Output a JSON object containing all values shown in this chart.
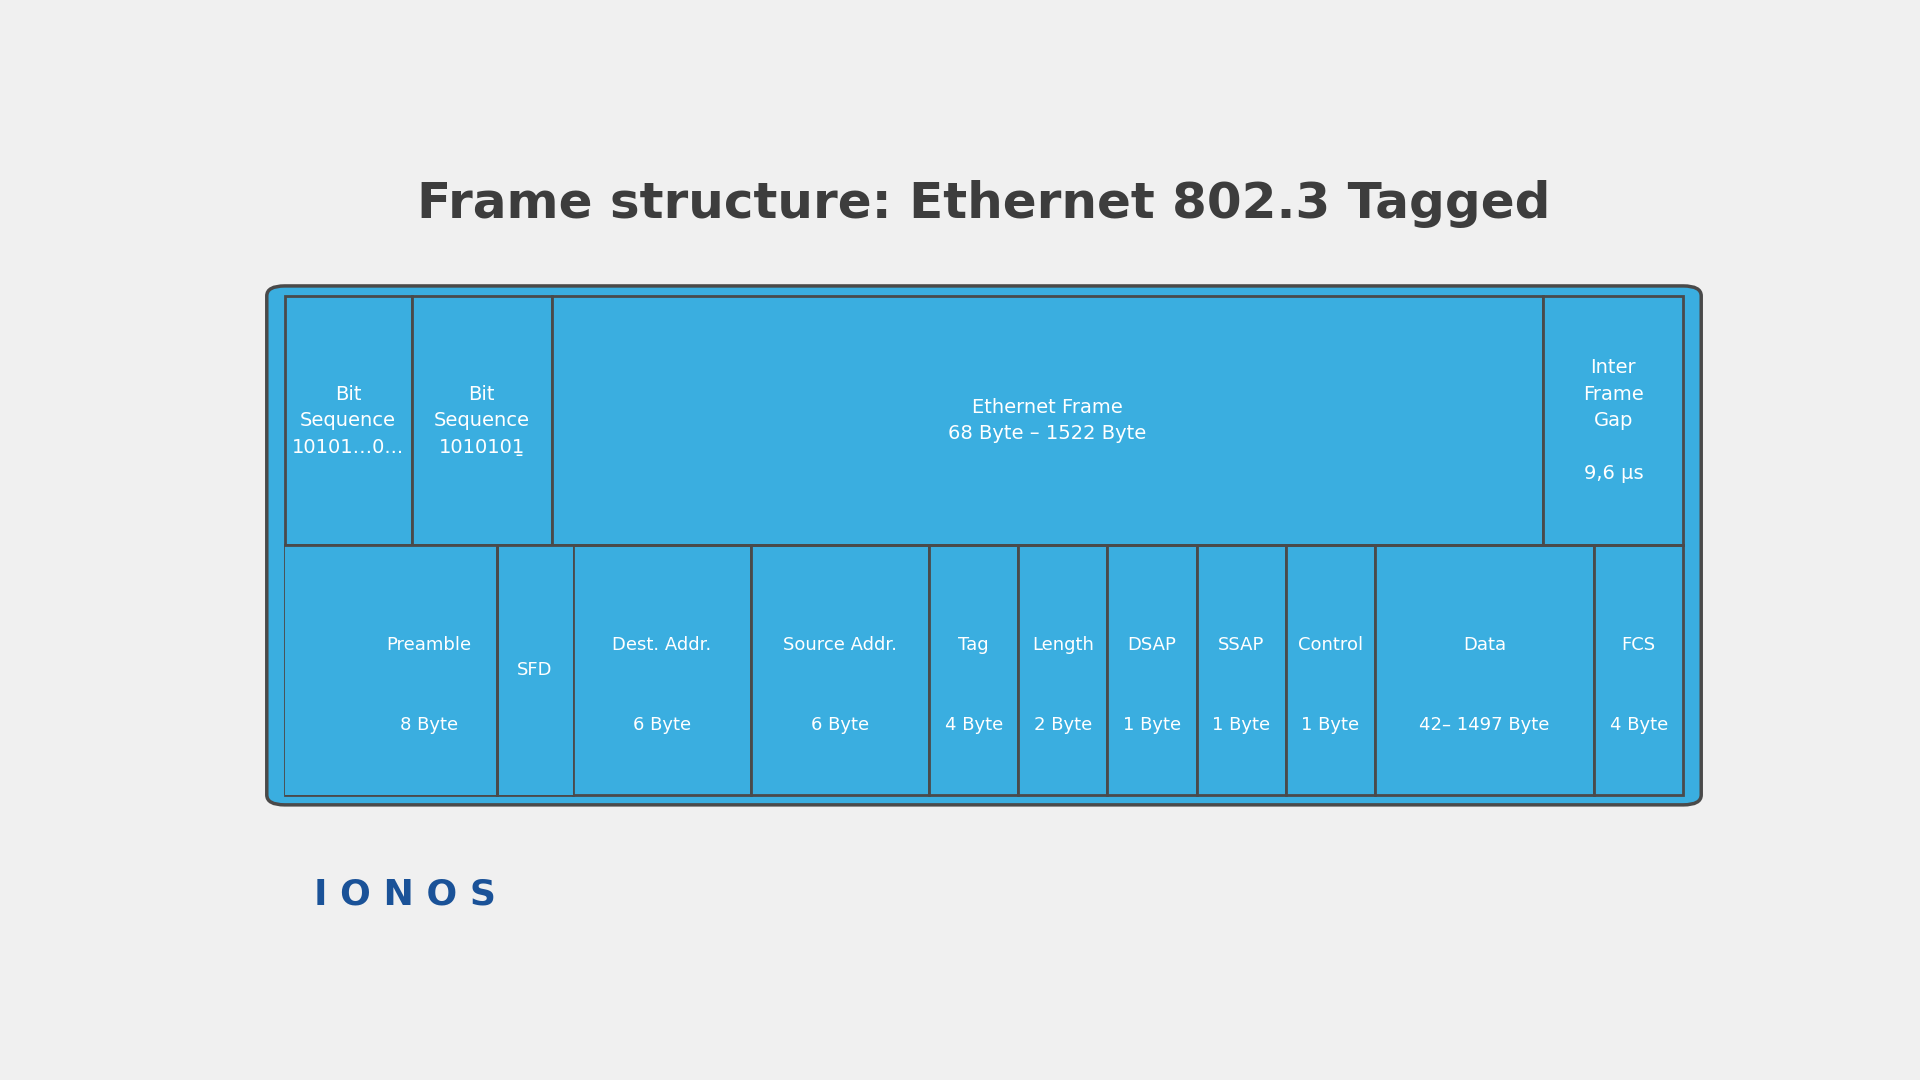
{
  "title": "Frame structure: Ethernet 802.3 Tagged",
  "title_color": "#3d3d3d",
  "title_fontsize": 36,
  "background_color": "#f0f0f0",
  "cell_color": "#3aaee0",
  "cell_edge_color": "#4a4a4a",
  "text_color": "#ffffff",
  "logo_text": "I O N O S",
  "logo_color": "#1a5298",
  "top_row": [
    {
      "label": "Bit\nSequence\n10101…0...",
      "weight": 1.0
    },
    {
      "label": "Bit\nSequence\n1010101̱",
      "weight": 1.1
    },
    {
      "label": "Ethernet Frame\n68 Byte – 1522 Byte",
      "weight": 7.8
    },
    {
      "label": "Inter\nFrame\nGap\n\n9,6 µs",
      "weight": 1.1
    }
  ],
  "bottom_row": [
    {
      "label": "Preamble",
      "sublabel": "8 Byte",
      "weight": 1.55
    },
    {
      "label": "SFD",
      "sublabel": "",
      "weight": 0.55
    },
    {
      "label": "Dest. Addr.",
      "sublabel": "6 Byte",
      "weight": 1.3
    },
    {
      "label": "Source Addr.",
      "sublabel": "6 Byte",
      "weight": 1.3
    },
    {
      "label": "Tag",
      "sublabel": "4 Byte",
      "weight": 0.65
    },
    {
      "label": "Length",
      "sublabel": "2 Byte",
      "weight": 0.65
    },
    {
      "label": "DSAP",
      "sublabel": "1 Byte",
      "weight": 0.65
    },
    {
      "label": "SSAP",
      "sublabel": "1 Byte",
      "weight": 0.65
    },
    {
      "label": "Control",
      "sublabel": "1 Byte",
      "weight": 0.65
    },
    {
      "label": "Data",
      "sublabel": "42– 1497 Byte",
      "weight": 1.6
    },
    {
      "label": "FCS",
      "sublabel": "4 Byte",
      "weight": 0.65
    }
  ]
}
